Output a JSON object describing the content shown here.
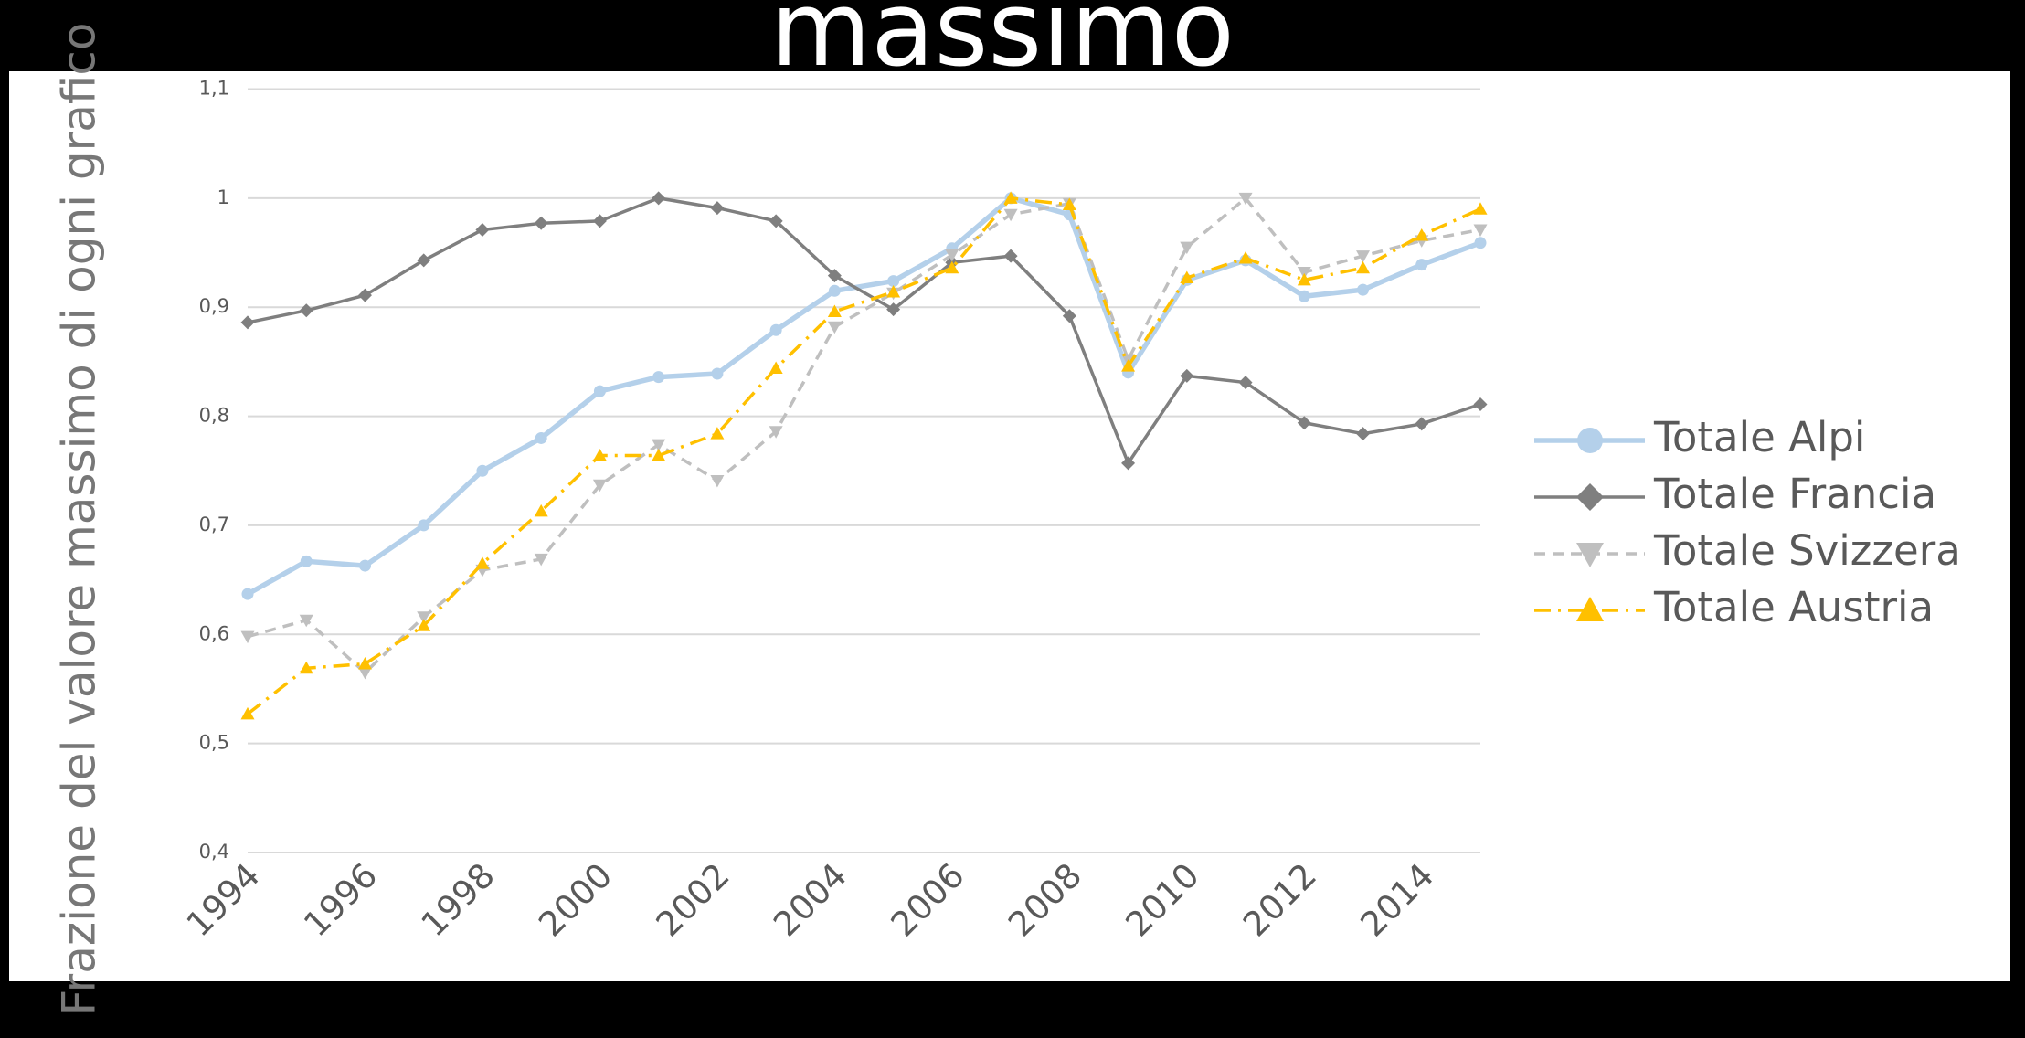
{
  "chart_data": {
    "type": "line",
    "title": "massimo",
    "y_label": "Frazione del valore massimo di ogni grafico",
    "xlim": [
      1994,
      2015
    ],
    "xticks": [
      1994,
      1996,
      1998,
      2000,
      2002,
      2004,
      2006,
      2008,
      2010,
      2012,
      2014
    ],
    "ylim": [
      0.4,
      1.1
    ],
    "yticks": [
      {
        "value": 0.4,
        "label": "0,4"
      },
      {
        "value": 0.5,
        "label": "0,5"
      },
      {
        "value": 0.6,
        "label": "0,6"
      },
      {
        "value": 0.7,
        "label": "0,7"
      },
      {
        "value": 0.8,
        "label": "0,8"
      },
      {
        "value": 0.9,
        "label": "0,9"
      },
      1,
      {
        "value": 1.1,
        "label": "1,1"
      }
    ],
    "grid": true,
    "legend": "right",
    "x": [
      1994,
      1995,
      1996,
      1997,
      1998,
      1999,
      2000,
      2001,
      2002,
      2003,
      2004,
      2005,
      2006,
      2007,
      2008,
      2009,
      2010,
      2011,
      2012,
      2013,
      2014,
      2015
    ],
    "series": [
      {
        "name": "Totale Alpi",
        "color": "#b4d0ea",
        "marker": "circle",
        "dash": "solid",
        "width": 5.5,
        "values": [
          0.637,
          0.667,
          0.663,
          0.7,
          0.75,
          0.78,
          0.823,
          0.836,
          0.839,
          0.879,
          0.915,
          0.924,
          0.954,
          1.0,
          0.985,
          0.84,
          0.925,
          0.943,
          0.91,
          0.916,
          0.939,
          0.959
        ]
      },
      {
        "name": "Totale Francia",
        "color": "#7f7f7f",
        "marker": "diamond",
        "dash": "solid",
        "width": 3.5,
        "values": [
          0.886,
          0.897,
          0.911,
          0.943,
          0.971,
          0.977,
          0.979,
          1.0,
          0.991,
          0.979,
          0.929,
          0.898,
          0.941,
          0.947,
          0.892,
          0.757,
          0.837,
          0.831,
          0.794,
          0.784,
          0.793,
          0.811
        ]
      },
      {
        "name": "Totale Svizzera",
        "color": "#bfbfbf",
        "marker": "triangle-down",
        "dash": "dashed",
        "width": 3.5,
        "values": [
          0.598,
          0.613,
          0.565,
          0.616,
          0.659,
          0.669,
          0.737,
          0.774,
          0.741,
          0.786,
          0.882,
          0.913,
          0.948,
          0.985,
          0.995,
          0.852,
          0.955,
          1.0,
          0.932,
          0.947,
          0.961,
          0.971
        ]
      },
      {
        "name": "Totale Austria",
        "color": "#ffc000",
        "marker": "triangle-up",
        "dash": "dashdot",
        "width": 3.5,
        "values": [
          0.527,
          0.569,
          0.573,
          0.608,
          0.665,
          0.713,
          0.764,
          0.764,
          0.784,
          0.844,
          0.896,
          0.914,
          0.936,
          1.0,
          0.994,
          0.846,
          0.927,
          0.945,
          0.925,
          0.936,
          0.966,
          0.99
        ]
      }
    ]
  }
}
